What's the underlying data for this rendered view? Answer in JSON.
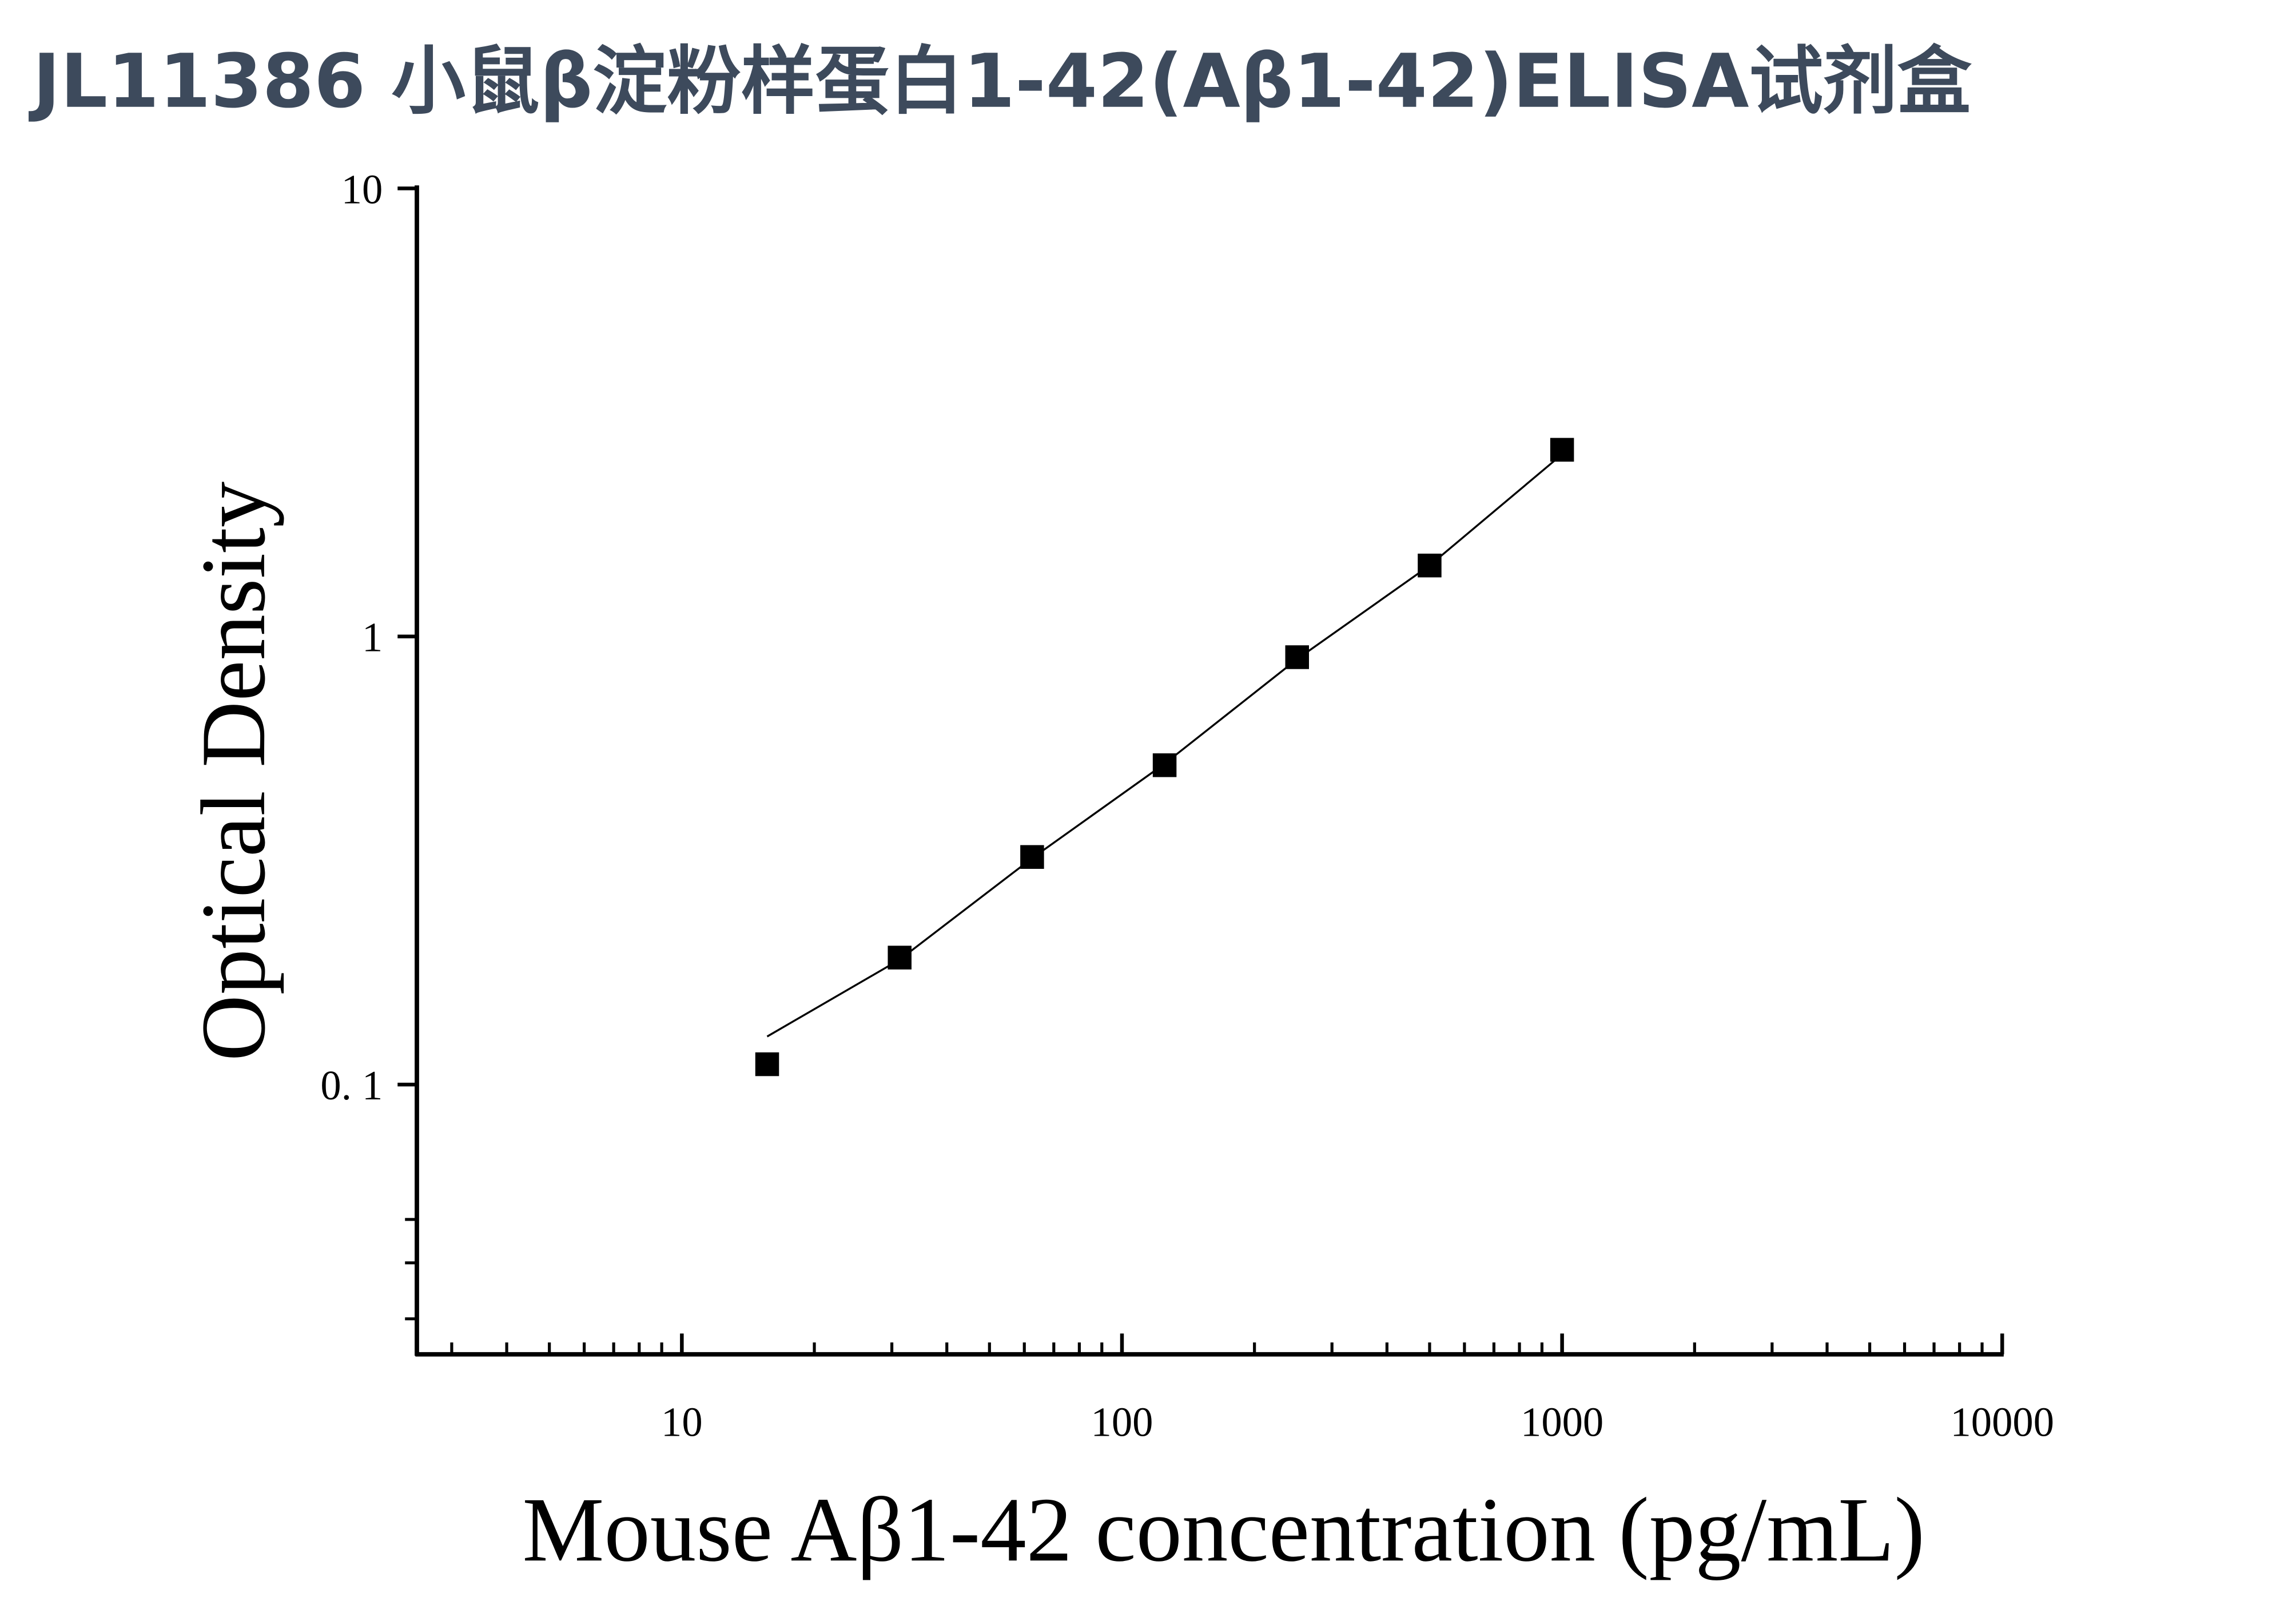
{
  "chart_data": {
    "type": "scatter",
    "title": "JL11386 小鼠β淀粉样蛋白1-42(Aβ1-42)ELISA试剂盒",
    "x_label": "Mouse Aβ1-42 concentration (pg/mL)",
    "y_label": "Optical Density",
    "x": [
      15.625,
      31.25,
      62.5,
      125,
      250,
      500,
      1000
    ],
    "series": [
      {
        "color": "#000000",
        "marker": "square",
        "values": [
          0.111,
          0.192,
          0.322,
          0.516,
          0.899,
          1.44,
          2.61
        ]
      },
      {
        "color": "#000000",
        "marker": "line",
        "values": [
          0.128,
          0.19,
          0.32,
          0.52,
          0.89,
          1.44,
          2.55
        ]
      }
    ],
    "x_log": true,
    "y_log": true,
    "xlim": [
      2.5,
      10000
    ],
    "ylim": [
      0.025,
      10
    ],
    "xticks": [
      10,
      100,
      1000,
      10000
    ],
    "xminor_ticks": [
      3,
      4,
      5,
      6,
      7,
      8,
      9,
      20,
      30,
      40,
      50,
      60,
      70,
      80,
      90,
      200,
      300,
      400,
      500,
      600,
      700,
      800,
      900,
      2000,
      3000,
      4000,
      5000,
      6000,
      7000,
      8000,
      9000
    ],
    "yticks": [
      10,
      1,
      {
        "value": 0.1,
        "label": "0. 1"
      }
    ],
    "yminor_ticks": [
      0.03,
      0.04,
      0.05
    ],
    "grid": false
  }
}
